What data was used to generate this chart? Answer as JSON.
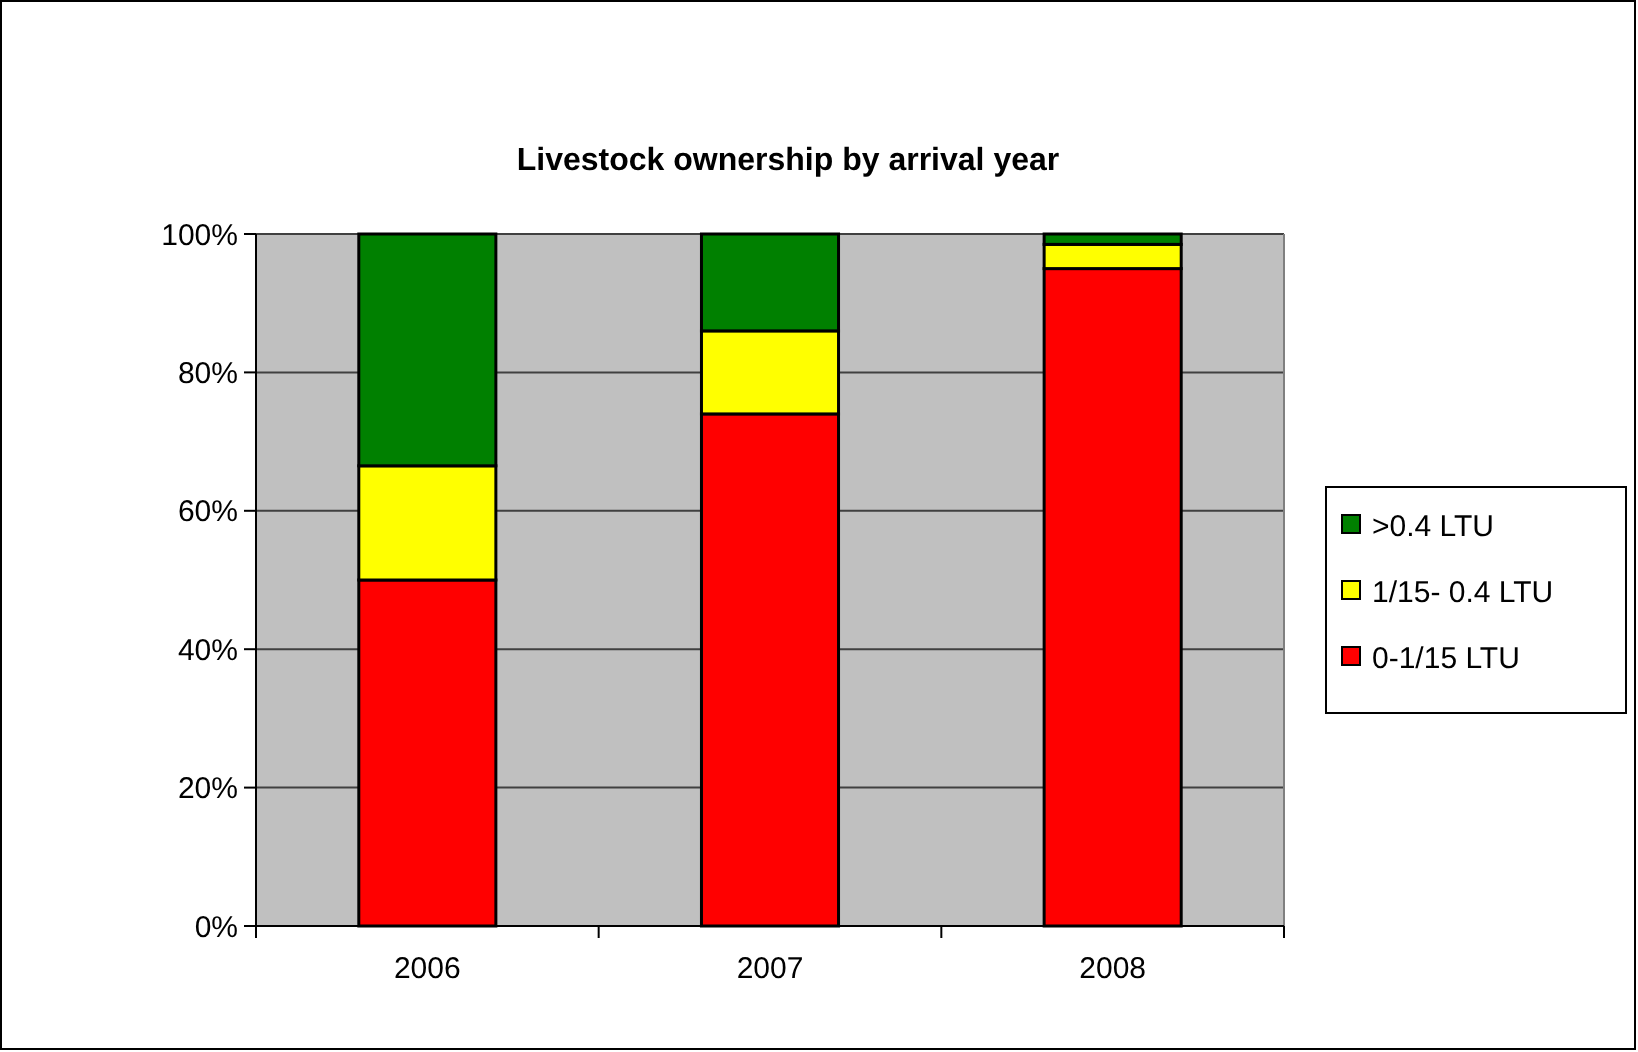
{
  "chart_data": {
    "type": "bar",
    "title": "Livestock ownership by arrival year",
    "categories": [
      "2006",
      "2007",
      "2008"
    ],
    "series": [
      {
        "name": "0-1/15 LTU",
        "color": "#ff0000",
        "values": [
          50,
          74,
          95
        ]
      },
      {
        "name": "1/15- 0.4 LTU",
        "color": "#ffff00",
        "values": [
          16.5,
          12,
          3.5
        ]
      },
      {
        "name": ">0.4 LTU",
        "color": "#008000",
        "values": [
          33.5,
          14,
          1.5
        ]
      }
    ],
    "stacked": true,
    "ylim": [
      0,
      100
    ],
    "yticks": [
      {
        "value": 0,
        "label": "0%"
      },
      {
        "value": 20,
        "label": "20%"
      },
      {
        "value": 40,
        "label": "40%"
      },
      {
        "value": 60,
        "label": "60%"
      },
      {
        "value": 80,
        "label": "80%"
      },
      {
        "value": 100,
        "label": "100%"
      }
    ],
    "grid": "y",
    "legend": "right"
  }
}
